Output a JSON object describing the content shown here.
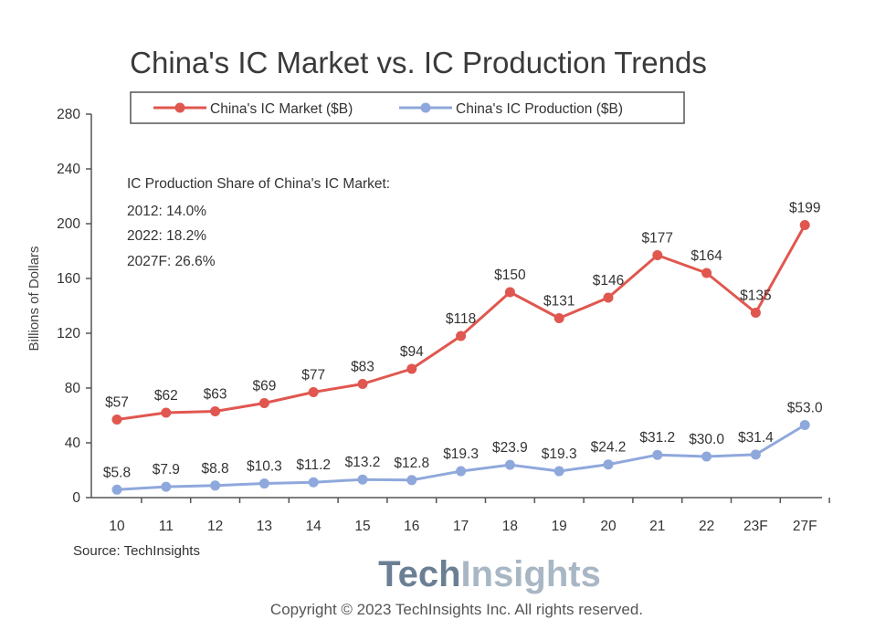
{
  "chart_data": {
    "type": "line",
    "title": "China's IC Market vs. IC Production Trends",
    "ylabel": "Billions of Dollars",
    "xlabel": "",
    "ylim": [
      0,
      280
    ],
    "yticks": [
      0,
      40,
      80,
      120,
      160,
      200,
      240,
      280
    ],
    "categories": [
      "10",
      "11",
      "12",
      "13",
      "14",
      "15",
      "16",
      "17",
      "18",
      "19",
      "20",
      "21",
      "22",
      "23F",
      "27F"
    ],
    "legend_position": "top",
    "grid": false,
    "series": [
      {
        "name": "China's IC Market ($B)",
        "color": "#e0574f",
        "values": [
          57,
          62,
          63,
          69,
          77,
          83,
          94,
          118,
          150,
          131,
          146,
          177,
          164,
          135,
          199
        ],
        "labels": [
          "$57",
          "$62",
          "$63",
          "$69",
          "$77",
          "$83",
          "$94",
          "$118",
          "$150",
          "$131",
          "$146",
          "$177",
          "$164",
          "$135",
          "$199"
        ]
      },
      {
        "name": "China's IC Production ($B)",
        "color": "#8fa8dc",
        "values": [
          5.8,
          7.9,
          8.8,
          10.3,
          11.2,
          13.2,
          12.8,
          19.3,
          23.9,
          19.3,
          24.2,
          31.2,
          30.0,
          31.4,
          53.0
        ],
        "labels": [
          "$5.8",
          "$7.9",
          "$8.8",
          "$10.3",
          "$11.2",
          "$13.2",
          "$12.8",
          "$19.3",
          "$23.9",
          "$19.3",
          "$24.2",
          "$31.2",
          "$30.0",
          "$31.4",
          "$53.0"
        ]
      }
    ],
    "annotation_lines": [
      "IC Production Share of China's IC Market:",
      "2012: 14.0%",
      "2022: 18.2%",
      "2027F: 26.6%"
    ]
  },
  "source": "Source: TechInsights",
  "logo": {
    "part1": "Tech",
    "part2": "Insights"
  },
  "copyright": "Copyright © 2023 TechInsights Inc.  All rights reserved."
}
